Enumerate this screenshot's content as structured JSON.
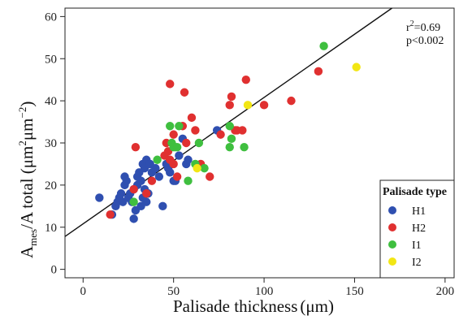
{
  "chart_data": {
    "type": "scatter",
    "xlabel": "Palisade thickness",
    "xlabel_unit": "(μm)",
    "ylabel_main": "A",
    "ylabel_sub": "mes",
    "ylabel_rest": "/A total (μm",
    "ylabel_sup1": "2",
    "ylabel_mid": "μm",
    "ylabel_sup2": "−2",
    "ylabel_close": ")",
    "xlim": [
      -10,
      205
    ],
    "ylim": [
      -2,
      62
    ],
    "xticks": [
      "0",
      "50",
      "100",
      "150",
      "200"
    ],
    "yticks": [
      "0",
      "10",
      "20",
      "30",
      "40",
      "50",
      "60"
    ],
    "grid": false,
    "annotation": {
      "r2_base": "r",
      "r2_sup": "2",
      "r2_value": "=0.69",
      "p": "p<0.002"
    },
    "regression": {
      "intercept": 10.8,
      "slope": 0.3
    },
    "legend": {
      "title": "Palisade type",
      "position": "bottom-right"
    },
    "series": [
      {
        "name": "H1",
        "color": "#2f4fb0",
        "points": [
          [
            9,
            17
          ],
          [
            16,
            13
          ],
          [
            18,
            15
          ],
          [
            19,
            16
          ],
          [
            20,
            17
          ],
          [
            21,
            18
          ],
          [
            22,
            16
          ],
          [
            23,
            20
          ],
          [
            23,
            22
          ],
          [
            24,
            21
          ],
          [
            25,
            17
          ],
          [
            26,
            18
          ],
          [
            27,
            16
          ],
          [
            28,
            19
          ],
          [
            28,
            12
          ],
          [
            29,
            14
          ],
          [
            30,
            20
          ],
          [
            30,
            22
          ],
          [
            31,
            23
          ],
          [
            32,
            21
          ],
          [
            32,
            15
          ],
          [
            33,
            25
          ],
          [
            33,
            17
          ],
          [
            34,
            24
          ],
          [
            34,
            19
          ],
          [
            35,
            26
          ],
          [
            35,
            16
          ],
          [
            36,
            18
          ],
          [
            37,
            25
          ],
          [
            38,
            23
          ],
          [
            40,
            24
          ],
          [
            42,
            22
          ],
          [
            44,
            15
          ],
          [
            46,
            25
          ],
          [
            47,
            24
          ],
          [
            48,
            23
          ],
          [
            50,
            21
          ],
          [
            51,
            21
          ],
          [
            53,
            27
          ],
          [
            55,
            31
          ],
          [
            57,
            25
          ],
          [
            58,
            26
          ],
          [
            74,
            33
          ]
        ]
      },
      {
        "name": "H2",
        "color": "#e03030",
        "points": [
          [
            15,
            13
          ],
          [
            28,
            19
          ],
          [
            29,
            29
          ],
          [
            35,
            18
          ],
          [
            38,
            21
          ],
          [
            45,
            27
          ],
          [
            46,
            30
          ],
          [
            47,
            28
          ],
          [
            48,
            26
          ],
          [
            48,
            44
          ],
          [
            50,
            32
          ],
          [
            50,
            25
          ],
          [
            52,
            22
          ],
          [
            55,
            34
          ],
          [
            56,
            42
          ],
          [
            57,
            30
          ],
          [
            60,
            36
          ],
          [
            62,
            33
          ],
          [
            65,
            25
          ],
          [
            70,
            22
          ],
          [
            76,
            32
          ],
          [
            81,
            39
          ],
          [
            82,
            41
          ],
          [
            84,
            33
          ],
          [
            85,
            33
          ],
          [
            88,
            33
          ],
          [
            90,
            45
          ],
          [
            100,
            39
          ],
          [
            115,
            40
          ],
          [
            130,
            47
          ]
        ]
      },
      {
        "name": "I1",
        "color": "#3fbf3f",
        "points": [
          [
            28,
            16
          ],
          [
            41,
            26
          ],
          [
            48,
            34
          ],
          [
            49,
            30
          ],
          [
            50,
            29
          ],
          [
            51,
            29
          ],
          [
            52,
            29
          ],
          [
            53,
            34
          ],
          [
            58,
            21
          ],
          [
            62,
            25
          ],
          [
            64,
            30
          ],
          [
            67,
            24
          ],
          [
            81,
            34
          ],
          [
            81,
            29
          ],
          [
            82,
            31
          ],
          [
            89,
            29
          ],
          [
            133,
            53
          ]
        ]
      },
      {
        "name": "I2",
        "color": "#f2e614",
        "points": [
          [
            63,
            24
          ],
          [
            91,
            39
          ],
          [
            151,
            48
          ]
        ]
      }
    ]
  }
}
